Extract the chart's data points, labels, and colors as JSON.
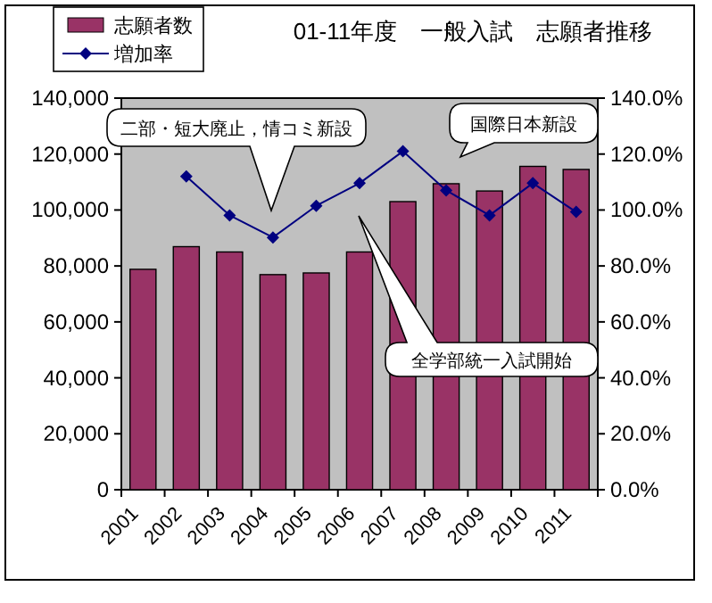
{
  "chart_data": {
    "type": "bar",
    "title": "01-11年度　一般入試　志願者推移",
    "categories": [
      "2001",
      "2002",
      "2003",
      "2004",
      "2005",
      "2006",
      "2007",
      "2008",
      "2009",
      "2010",
      "2011"
    ],
    "series": [
      {
        "name": "志願者数",
        "color": "#993366",
        "values": [
          78800,
          86900,
          85000,
          76900,
          77500,
          85000,
          103000,
          109400,
          106800,
          115600,
          114500
        ]
      },
      {
        "name": "増加率",
        "type": "line",
        "axis": "y2",
        "color": "#000080",
        "marker": "diamond",
        "values": [
          null,
          112.0,
          98.1,
          90.2,
          101.5,
          109.6,
          121.0,
          107.0,
          98.1,
          109.6,
          99.3
        ]
      }
    ],
    "ylim": [
      0,
      140000
    ],
    "yticks": [
      {
        "value": 0,
        "label": "0"
      },
      {
        "value": 20000,
        "label": "20,000"
      },
      {
        "value": 40000,
        "label": "40,000"
      },
      {
        "value": 60000,
        "label": "60,000"
      },
      {
        "value": 80000,
        "label": "80,000"
      },
      {
        "value": 100000,
        "label": "100,000"
      },
      {
        "value": 120000,
        "label": "120,000"
      },
      {
        "value": 140000,
        "label": "140,000"
      }
    ],
    "y2lim": [
      0,
      140
    ],
    "y2ticks": [
      {
        "value": 0,
        "label": "0.0%"
      },
      {
        "value": 20,
        "label": "20.0%"
      },
      {
        "value": 40,
        "label": "40.0%"
      },
      {
        "value": 60,
        "label": "60.0%"
      },
      {
        "value": 80,
        "label": "80.0%"
      },
      {
        "value": 100,
        "label": "100.0%"
      },
      {
        "value": 120,
        "label": "120.0%"
      },
      {
        "value": 140,
        "label": "140.0%"
      }
    ],
    "annotations": [
      "二部・短大廃止，情コミ新設",
      "国際日本新設",
      "全学部統一入試開始"
    ],
    "legend": "top left",
    "grid": false
  }
}
